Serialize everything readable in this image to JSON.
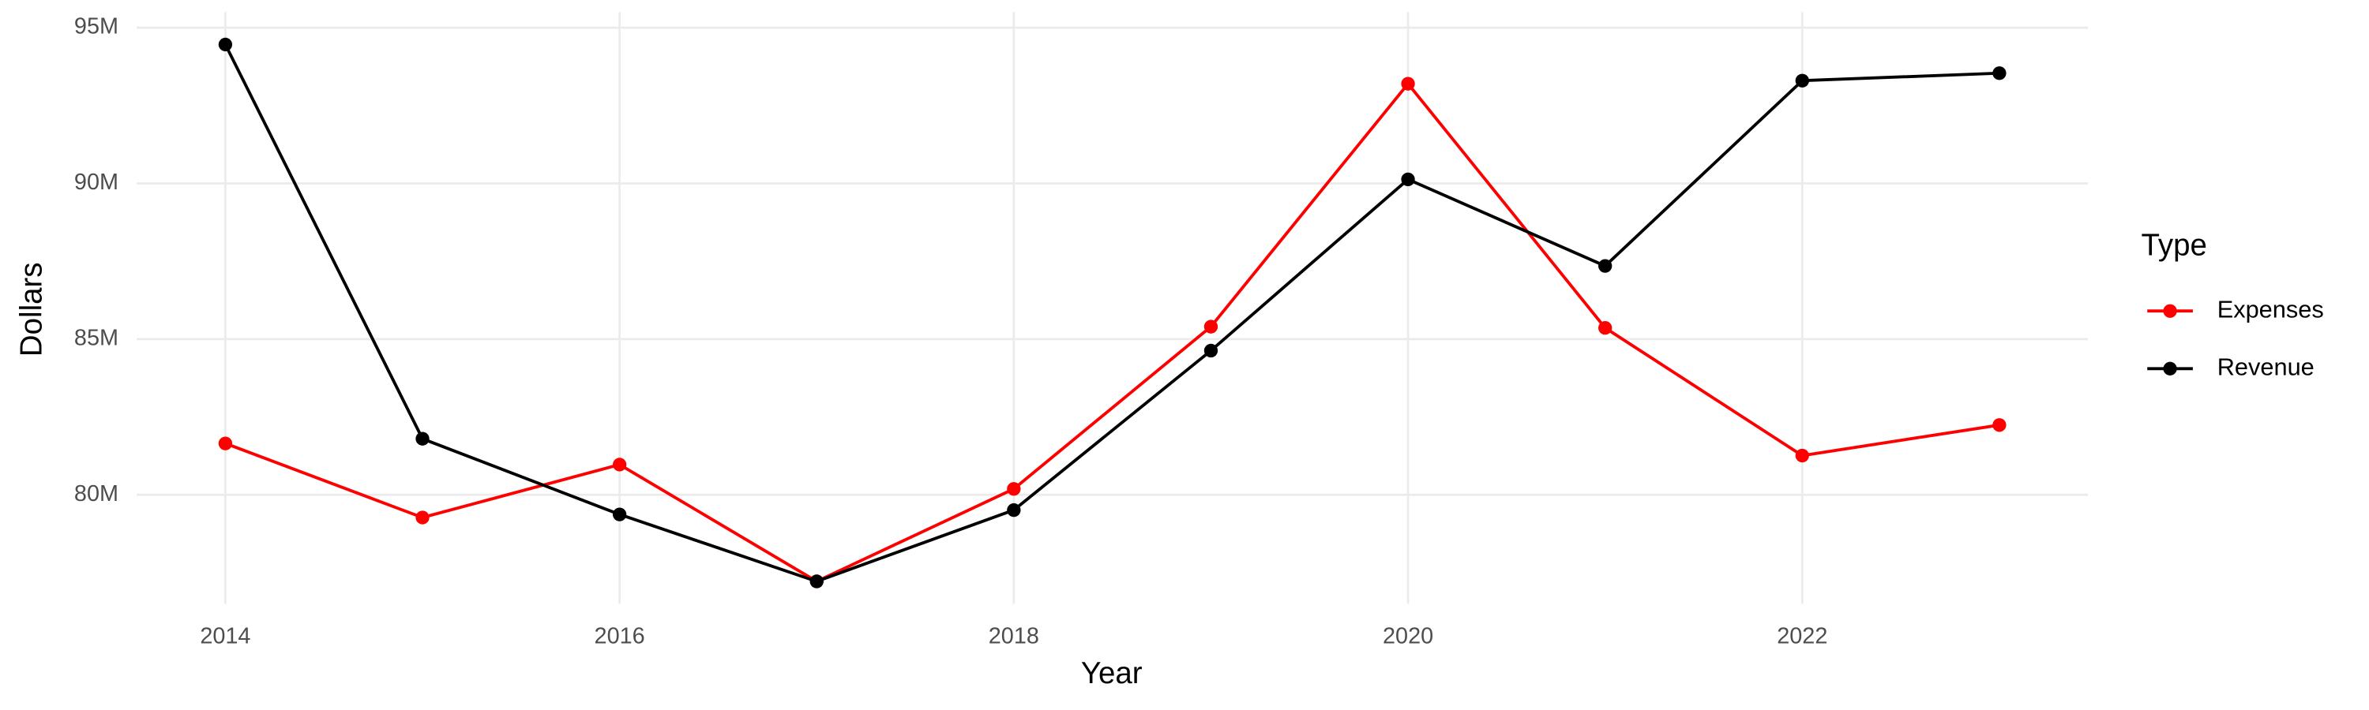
{
  "chart_data": {
    "type": "line",
    "x_label": "Year",
    "y_label": "Dollars",
    "legend_title": "Type",
    "x": [
      2014,
      2015,
      2016,
      2017,
      2018,
      2019,
      2020,
      2021,
      2022,
      2023
    ],
    "series": [
      {
        "name": "Expenses",
        "color": "#ff0000",
        "values": [
          81650000,
          79270000,
          80970000,
          77220000,
          80190000,
          85400000,
          93200000,
          85360000,
          81260000,
          82240000
        ]
      },
      {
        "name": "Revenue",
        "color": "#000000",
        "values": [
          94460000,
          81800000,
          79370000,
          77220000,
          79510000,
          84630000,
          90130000,
          87350000,
          93300000,
          93540000
        ]
      }
    ],
    "xlim": [
      2013.55,
      2023.45
    ],
    "xticks": [
      2014,
      2016,
      2018,
      2020,
      2022
    ],
    "ylim": [
      76500000,
      95500000
    ],
    "yticks": [
      {
        "value": 80000000,
        "label": "80M"
      },
      {
        "value": 85000000,
        "label": "85M"
      },
      {
        "value": 90000000,
        "label": "90M"
      },
      {
        "value": 95000000,
        "label": "95M"
      }
    ],
    "grid": true,
    "legend": "right"
  }
}
